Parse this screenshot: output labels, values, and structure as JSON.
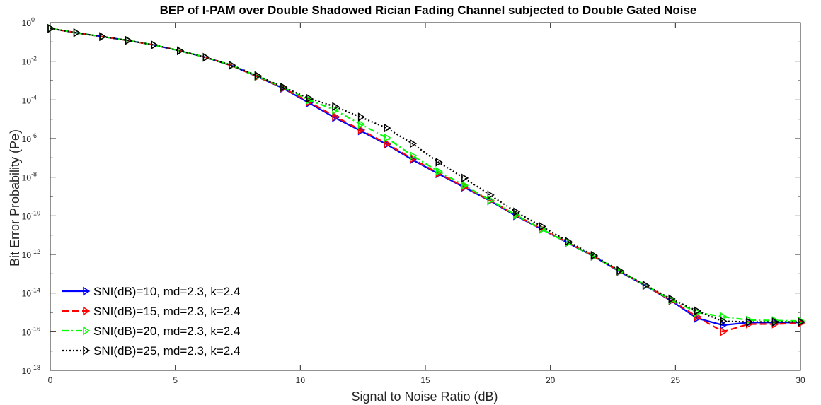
{
  "chart_data": {
    "type": "line",
    "title": "BEP of I-PAM over Double Shadowed Rician Fading Channel subjected to Double Gated Noise",
    "xlabel": "Signal to Noise Ratio (dB)",
    "ylabel": "Bit Error Probability (Pe)",
    "xlim": [
      0,
      30
    ],
    "ylim": [
      1e-18,
      1
    ],
    "yscale": "log",
    "x_ticks": [
      "0",
      "5",
      "10",
      "15",
      "20",
      "25",
      "30"
    ],
    "y_tick_exponents": [
      "0",
      "-2",
      "-4",
      "-6",
      "-8",
      "-10",
      "-12",
      "-14",
      "-16",
      "-18"
    ],
    "y_tick_base": "10",
    "grid": false,
    "legend_position": "bottom-left",
    "x": [
      0,
      1.034,
      2.069,
      3.103,
      4.138,
      5.172,
      6.207,
      7.241,
      8.276,
      9.31,
      10.345,
      11.379,
      12.414,
      13.448,
      14.483,
      15.517,
      16.552,
      17.586,
      18.621,
      19.655,
      20.69,
      21.724,
      22.759,
      23.793,
      24.828,
      25.862,
      26.897,
      27.931,
      28.966,
      30
    ],
    "series": [
      {
        "name": "SNI(dB)=10, md=2.3, k=2.4",
        "color": "#0000ff",
        "line_style": "solid",
        "marker": "triangle-right",
        "y": [
          0.5,
          0.3,
          0.19,
          0.12,
          0.07,
          0.035,
          0.016,
          0.006,
          0.0016,
          0.0004,
          7e-05,
          1.2e-05,
          2.5e-06,
          5e-07,
          8e-08,
          1.5e-08,
          3e-09,
          6e-10,
          1e-10,
          2e-11,
          4e-12,
          8e-13,
          1.3e-13,
          2.4e-14,
          4e-15,
          5e-16,
          2.2e-16,
          3e-16,
          3e-16,
          3e-16
        ]
      },
      {
        "name": "SNI(dB)=15, md=2.3, k=2.4",
        "color": "#ff0000",
        "line_style": "dashed",
        "marker": "triangle-right",
        "y": [
          0.5,
          0.3,
          0.19,
          0.12,
          0.07,
          0.035,
          0.016,
          0.006,
          0.0016,
          0.00042,
          8e-05,
          1.4e-05,
          2.8e-06,
          5.5e-07,
          9e-08,
          1.6e-08,
          3.2e-09,
          6.2e-10,
          1.1e-10,
          2.1e-11,
          4.2e-12,
          8.2e-13,
          1.35e-13,
          2.5e-14,
          4.2e-15,
          6e-16,
          1e-16,
          2.5e-16,
          2.5e-16,
          2.8e-16
        ]
      },
      {
        "name": "SNI(dB)=20, md=2.3, k=2.4",
        "color": "#00ff00",
        "line_style": "dashdot",
        "marker": "triangle-right",
        "y": [
          0.5,
          0.3,
          0.19,
          0.12,
          0.07,
          0.035,
          0.016,
          0.0062,
          0.0017,
          0.00045,
          0.0001,
          3e-05,
          5.5e-06,
          1.1e-06,
          1.3e-07,
          2e-08,
          3.8e-09,
          6.5e-10,
          1.1e-10,
          2e-11,
          4.1e-12,
          8.2e-13,
          1.4e-13,
          2.5e-14,
          4.5e-15,
          1e-15,
          6e-16,
          4e-16,
          3.8e-16,
          3.6e-16
        ]
      },
      {
        "name": "SNI(dB)=25, md=2.3, k=2.4",
        "color": "#000000",
        "line_style": "dotted",
        "marker": "triangle-right",
        "y": [
          0.5,
          0.3,
          0.19,
          0.12,
          0.07,
          0.035,
          0.016,
          0.0063,
          0.0018,
          0.00046,
          0.00012,
          4.5e-05,
          1.3e-05,
          3.5e-06,
          5.5e-07,
          6e-08,
          9e-09,
          1.2e-09,
          1.6e-10,
          2.8e-11,
          4.8e-12,
          9e-13,
          1.45e-13,
          2.6e-14,
          5e-15,
          1.2e-15,
          3.5e-16,
          3.2e-16,
          3.2e-16,
          3.2e-16
        ]
      }
    ]
  }
}
